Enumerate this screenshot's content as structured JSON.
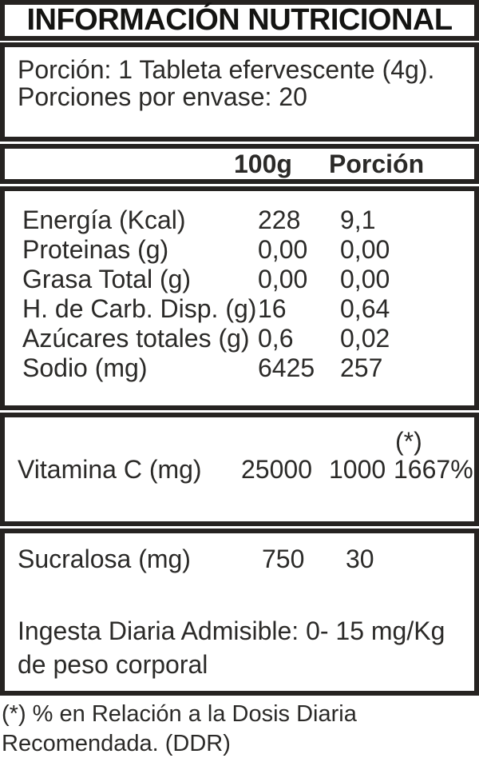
{
  "label": {
    "title": "INFORMACIÓN NUTRICIONAL",
    "serving": {
      "line1": "Porción: 1 Tableta efervescente (4g).",
      "line2": "Porciones por envase: 20"
    },
    "columns": {
      "per_100g": "100g",
      "per_portion": "Porción"
    },
    "nutrients": [
      {
        "name": "Energía (Kcal)",
        "per100g": "228",
        "portion": "9,1"
      },
      {
        "name": "Proteinas (g)",
        "per100g": "0,00",
        "portion": "0,00"
      },
      {
        "name": "Grasa Total (g)",
        "per100g": "0,00",
        "portion": "0,00"
      },
      {
        "name": "H. de Carb. Disp. (g)",
        "per100g": "16",
        "portion": "0,64"
      },
      {
        "name": "Azúcares totales (g)",
        "per100g": "0,6",
        "portion": "0,02"
      },
      {
        "name": "Sodio (mg)",
        "per100g": "6425",
        "portion": "257"
      }
    ],
    "vitamin": {
      "name": "Vitamina C (mg)",
      "per100g": "25000",
      "portion": "1000",
      "ddr_marker": "(*)",
      "ddr_percent": "1667%"
    },
    "sweetener": {
      "name": "Sucralosa (mg)",
      "per100g": "750",
      "portion": "30",
      "intake_line1": "Ingesta Diaria Admisible: 0- 15 mg/Kg",
      "intake_line2": "de peso corporal"
    },
    "footnote": {
      "line1": "(*) % en Relación a la Dosis Diaria",
      "line2": "Recomendada. (DDR)"
    },
    "colors": {
      "text": "#2b2a28",
      "border": "#262321",
      "background": "#ffffff"
    }
  }
}
